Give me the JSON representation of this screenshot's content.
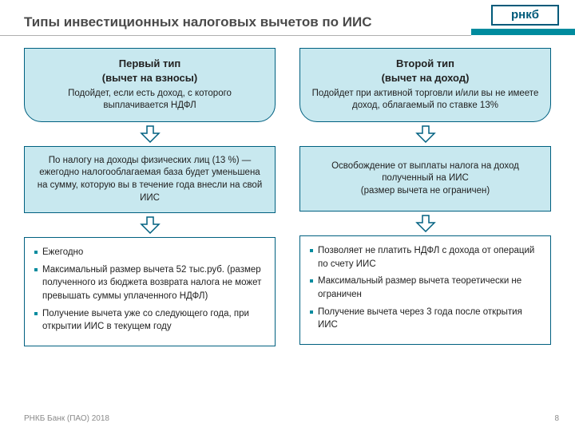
{
  "brand": "рнкб",
  "title": "Типы инвестиционных налоговых вычетов по ИИС",
  "colors": {
    "accent": "#008b9e",
    "box_fill": "#c8e8ef",
    "box_border": "#006080",
    "title_text": "#4a4a4a",
    "footer_text": "#8a8a8a",
    "arrow_fill": "#ffffff",
    "arrow_stroke": "#006080"
  },
  "columns": [
    {
      "top_title": "Первый тип\n(вычет на взносы)",
      "top_sub": "Подойдет, если есть доход, с которого выплачивается НДФЛ",
      "mid": "По налогу на доходы физических лиц (13 %) — ежегодно налогооблагаемая база будет уменьшена на сумму, которую вы в течение года внесли на свой ИИС",
      "bullets": [
        "Ежегодно",
        "Максимальный размер вычета 52 тыс.руб. (размер полученного из бюджета возврата налога не может превышать суммы уплаченного НДФЛ)",
        "Получение вычета уже со следующего года, при открытии ИИС в текущем году"
      ]
    },
    {
      "top_title": "Второй тип\n(вычет на доход)",
      "top_sub": "Подойдет при активной торговли и/или вы не имеете доход, облагаемый по ставке 13%",
      "mid": "Освобождение от выплаты налога на доход полученный на ИИС\n(размер вычета не ограничен)",
      "bullets": [
        "Позволяет не платить НДФЛ с дохода от операций по счету ИИС",
        "Максимальный размер вычета теоретически не ограничен",
        "Получение вычета через 3 года после открытия   ИИС"
      ]
    }
  ],
  "footer_left": "РНКБ Банк (ПАО) 2018",
  "page_number": "8",
  "arrow_svg": {
    "width": 26,
    "height": 22,
    "stroke_width": 1.5
  }
}
